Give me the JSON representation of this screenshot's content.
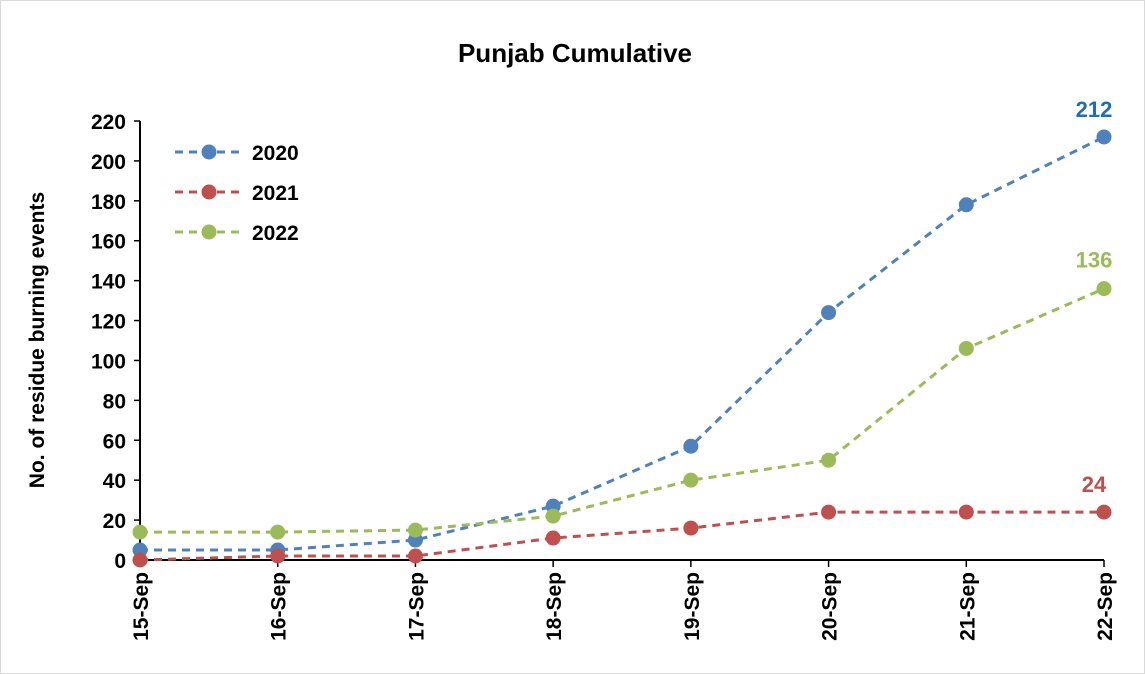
{
  "chart_data": {
    "type": "line",
    "title": "Punjab Cumulative",
    "xlabel": "",
    "ylabel": "No. of residue burning events",
    "categories": [
      "15-Sep",
      "16-Sep",
      "17-Sep",
      "18-Sep",
      "19-Sep",
      "20-Sep",
      "21-Sep",
      "22-Sep"
    ],
    "ylim": [
      0,
      220
    ],
    "yticks": [
      0,
      20,
      40,
      60,
      80,
      100,
      120,
      140,
      160,
      180,
      200,
      220
    ],
    "grid": false,
    "legend_position": "top-left",
    "line_style": "dashed",
    "series": [
      {
        "name": "2020",
        "color": "#4f81bd",
        "label_color": "#1f6fb4",
        "values": [
          5,
          5,
          10,
          27,
          57,
          124,
          178,
          212
        ],
        "end_label": "212"
      },
      {
        "name": "2021",
        "color": "#c0504d",
        "label_color": "#c0504d",
        "values": [
          0,
          2,
          2,
          11,
          16,
          24,
          24,
          24
        ],
        "end_label": "24"
      },
      {
        "name": "2022",
        "color": "#9bbb59",
        "label_color": "#9bbb59",
        "values": [
          14,
          14,
          15,
          22,
          40,
          50,
          106,
          136
        ],
        "end_label": "136"
      }
    ]
  }
}
